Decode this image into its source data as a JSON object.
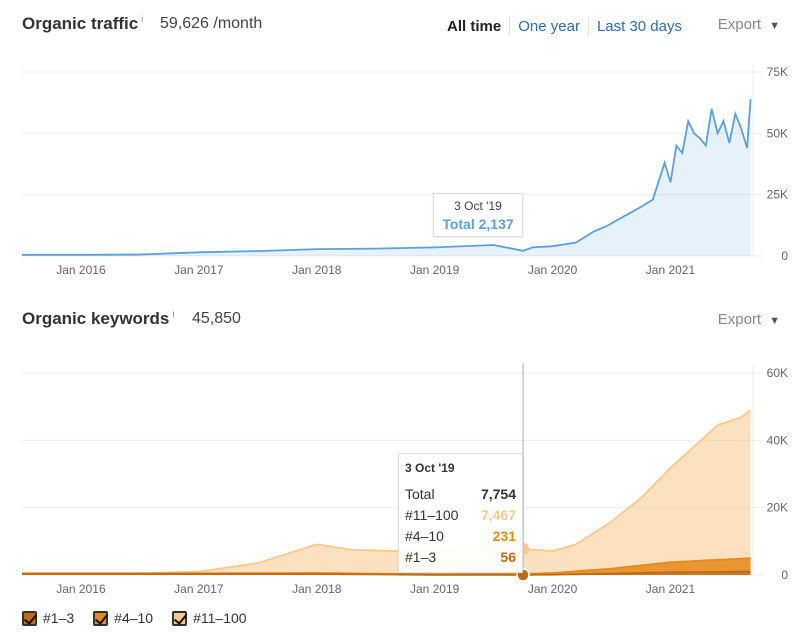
{
  "traffic": {
    "title": "Organic traffic",
    "info": "i",
    "value": "59,626 /month",
    "ranges": [
      "All time",
      "One year",
      "Last 30 days"
    ],
    "active_range": "All time",
    "export_label": "Export",
    "tooltip": {
      "date": "3 Oct '19",
      "total_label": "Total 2,137"
    },
    "accent_color": "#5d9fd7"
  },
  "keywords": {
    "title": "Organic keywords",
    "info": "i",
    "value": "45,850",
    "export_label": "Export",
    "tooltip": {
      "date": "3 Oct '19",
      "rows": [
        {
          "label": "Total",
          "value": "7,754",
          "color": "#333333"
        },
        {
          "label": "#11–100",
          "value": "7,467",
          "color": "#f7c98c"
        },
        {
          "label": "#4–10",
          "value": "231",
          "color": "#e68a1c"
        },
        {
          "label": "#1–3",
          "value": "56",
          "color": "#c06a10"
        }
      ]
    },
    "legend": [
      {
        "label": "#1–3",
        "color": "#c06a10"
      },
      {
        "label": "#4–10",
        "color": "#e68a1c"
      },
      {
        "label": "#11–100",
        "color": "#f7c98c"
      }
    ]
  },
  "chart_data": [
    {
      "type": "area",
      "x_ticks": [
        "Jan 2016",
        "Jan 2017",
        "Jan 2018",
        "Jan 2019",
        "Jan 2020",
        "Jan 2021"
      ],
      "y_ticks": [
        "75K",
        "50K",
        "25K",
        "0"
      ],
      "ylim": [
        0,
        75000
      ],
      "xlim": [
        2015.5,
        2021.7
      ],
      "grid": true,
      "series": [
        {
          "color": "#5d9fd7",
          "x": [
            2015.5,
            2016.0,
            2016.5,
            2017.0,
            2017.5,
            2018.0,
            2018.5,
            2019.0,
            2019.5,
            2019.75,
            2019.83,
            2020.0,
            2020.2,
            2020.35,
            2020.45,
            2020.6,
            2020.75,
            2020.85,
            2020.95,
            2021.0,
            2021.05,
            2021.1,
            2021.15,
            2021.2,
            2021.25,
            2021.3,
            2021.35,
            2021.4,
            2021.45,
            2021.5,
            2021.55,
            2021.6,
            2021.65,
            2021.68
          ],
          "values": [
            500,
            500,
            600,
            1500,
            2000,
            2800,
            3000,
            3500,
            4500,
            2137,
            3500,
            4000,
            5500,
            10000,
            12000,
            16000,
            20000,
            23000,
            38000,
            30000,
            45000,
            42000,
            55000,
            50000,
            48000,
            45000,
            60000,
            50000,
            55000,
            46000,
            58000,
            52000,
            44000,
            64000
          ]
        }
      ]
    },
    {
      "type": "area",
      "stacked": true,
      "x_ticks": [
        "Jan 2016",
        "Jan 2017",
        "Jan 2018",
        "Jan 2019",
        "Jan 2020",
        "Jan 2021"
      ],
      "y_ticks": [
        "60K",
        "40K",
        "20K",
        "0"
      ],
      "ylim": [
        0,
        60000
      ],
      "xlim": [
        2015.5,
        2021.7
      ],
      "grid": true,
      "series": [
        {
          "name": "#1–3",
          "color": "#c06a10",
          "x": [
            2015.5,
            2017.0,
            2018.0,
            2019.0,
            2019.75,
            2020.0,
            2020.5,
            2021.0,
            2021.68
          ],
          "values": [
            300,
            300,
            300,
            50,
            56,
            100,
            400,
            800,
            1000
          ]
        },
        {
          "name": "#4–10",
          "color": "#e68a1c",
          "x": [
            2015.5,
            2017.0,
            2018.0,
            2019.0,
            2019.75,
            2020.0,
            2020.5,
            2021.0,
            2021.68
          ],
          "values": [
            200,
            200,
            300,
            150,
            231,
            500,
            1500,
            3000,
            4000
          ]
        },
        {
          "name": "#11–100",
          "color": "#f7c98c",
          "x": [
            2015.5,
            2016.0,
            2016.5,
            2017.0,
            2017.5,
            2018.0,
            2018.3,
            2018.6,
            2019.0,
            2019.3,
            2019.75,
            2020.0,
            2020.2,
            2020.5,
            2020.75,
            2021.0,
            2021.2,
            2021.4,
            2021.6,
            2021.68
          ],
          "values": [
            0,
            0,
            0,
            500,
            3000,
            8500,
            7000,
            6800,
            7000,
            8000,
            7467,
            6500,
            8000,
            14000,
            20000,
            28000,
            34000,
            40000,
            42000,
            44000
          ]
        }
      ]
    }
  ]
}
